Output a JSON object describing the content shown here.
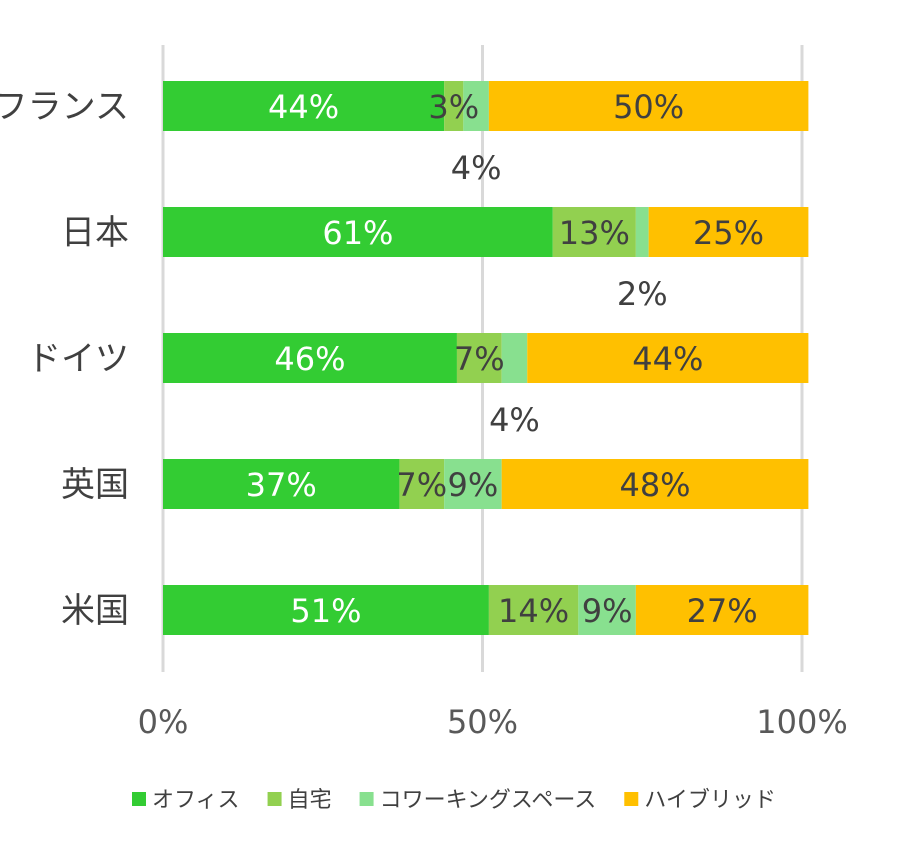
{
  "chart_data": {
    "type": "bar",
    "orientation": "horizontal",
    "stacked": true,
    "categories": [
      "フランス",
      "日本",
      "ドイツ",
      "英国",
      "米国"
    ],
    "series": [
      {
        "name": "オフィス",
        "color": "#33cc33",
        "values": [
          44,
          61,
          46,
          37,
          51
        ],
        "labels": [
          "44%",
          "61%",
          "46%",
          "37%",
          "51%"
        ]
      },
      {
        "name": "自宅",
        "color": "#92d050",
        "values": [
          3,
          13,
          7,
          7,
          14
        ],
        "labels": [
          "3%",
          "13%",
          "7%",
          "7%",
          "14%"
        ]
      },
      {
        "name": "コワーキングスペース",
        "color": "#88e08f",
        "values": [
          4,
          2,
          4,
          9,
          9
        ],
        "labels": [
          "4%",
          "2%",
          "4%",
          "9%",
          "9%"
        ]
      },
      {
        "name": "ハイブリッド",
        "color": "#ffc000",
        "values": [
          50,
          25,
          44,
          48,
          27
        ],
        "labels": [
          "50%",
          "25%",
          "44%",
          "48%",
          "27%"
        ]
      }
    ],
    "xlim": [
      0,
      100
    ],
    "xticks": [
      "0%",
      "50%",
      "100%"
    ],
    "xtick_values": [
      0,
      50,
      100
    ],
    "grid": true,
    "legend_position": "bottom"
  }
}
